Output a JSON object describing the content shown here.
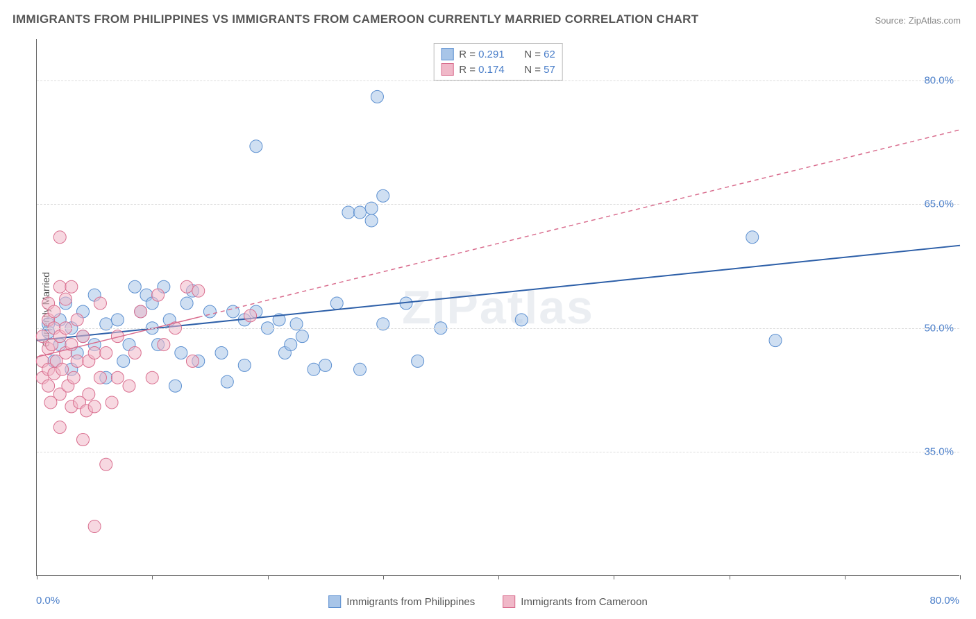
{
  "title": "IMMIGRANTS FROM PHILIPPINES VS IMMIGRANTS FROM CAMEROON CURRENTLY MARRIED CORRELATION CHART",
  "source": "Source: ZipAtlas.com",
  "ylabel": "Currently Married",
  "watermark": "ZIPatlas",
  "chart": {
    "type": "scatter",
    "xlim": [
      0,
      80
    ],
    "ylim": [
      20,
      85
    ],
    "x_min_label": "0.0%",
    "x_max_label": "80.0%",
    "y_ticks": [
      35.0,
      50.0,
      65.0,
      80.0
    ],
    "y_tick_labels": [
      "35.0%",
      "50.0%",
      "65.0%",
      "80.0%"
    ],
    "x_tick_positions": [
      0,
      10,
      20,
      30,
      40,
      50,
      60,
      70,
      80
    ],
    "grid_color": "#dddddd",
    "background_color": "#ffffff",
    "axis_color": "#666666",
    "marker_radius": 9,
    "marker_opacity": 0.55,
    "series": [
      {
        "name": "Immigrants from Philippines",
        "fill_color": "#a8c5e8",
        "stroke_color": "#5b8fd0",
        "line_color": "#2d5fa8",
        "line_dash": "none",
        "line_width": 2,
        "r_value": "0.291",
        "n_value": "62",
        "trend": {
          "x1": 0,
          "y1": 48.5,
          "x2": 80,
          "y2": 60.0
        },
        "points": [
          [
            1,
            49.5
          ],
          [
            1,
            50.5
          ],
          [
            1.5,
            46
          ],
          [
            2,
            48
          ],
          [
            2,
            51
          ],
          [
            2.5,
            53
          ],
          [
            3,
            50
          ],
          [
            3,
            45
          ],
          [
            3.5,
            47
          ],
          [
            4,
            52
          ],
          [
            4,
            49
          ],
          [
            5,
            54
          ],
          [
            5,
            48
          ],
          [
            6,
            50.5
          ],
          [
            6,
            44
          ],
          [
            7,
            51
          ],
          [
            7.5,
            46
          ],
          [
            8,
            48
          ],
          [
            8.5,
            55
          ],
          [
            9,
            52
          ],
          [
            9.5,
            54
          ],
          [
            10,
            53
          ],
          [
            10,
            50
          ],
          [
            10.5,
            48
          ],
          [
            11,
            55
          ],
          [
            11.5,
            51
          ],
          [
            12,
            43
          ],
          [
            12.5,
            47
          ],
          [
            13,
            53
          ],
          [
            13.5,
            54.5
          ],
          [
            14,
            46
          ],
          [
            15,
            52
          ],
          [
            16,
            47
          ],
          [
            16.5,
            43.5
          ],
          [
            17,
            52
          ],
          [
            18,
            51
          ],
          [
            18,
            45.5
          ],
          [
            19,
            52
          ],
          [
            19,
            72
          ],
          [
            20,
            50
          ],
          [
            21,
            51
          ],
          [
            21.5,
            47
          ],
          [
            22,
            48
          ],
          [
            22.5,
            50.5
          ],
          [
            23,
            49
          ],
          [
            24,
            45
          ],
          [
            25,
            45.5
          ],
          [
            26,
            53
          ],
          [
            27,
            64
          ],
          [
            28,
            45
          ],
          [
            29,
            63
          ],
          [
            29.5,
            78
          ],
          [
            30,
            50.5
          ],
          [
            30,
            66
          ],
          [
            32,
            53
          ],
          [
            33,
            46
          ],
          [
            35,
            50
          ],
          [
            42,
            51
          ],
          [
            62,
            61
          ],
          [
            64,
            48.5
          ],
          [
            28,
            64
          ],
          [
            29,
            64.5
          ]
        ]
      },
      {
        "name": "Immigrants from Cameroon",
        "fill_color": "#f0b8c8",
        "stroke_color": "#d96d8e",
        "line_color": "#d96d8e",
        "line_dash": "6,5",
        "line_width": 1.5,
        "r_value": "0.174",
        "n_value": "57",
        "trend": {
          "x1": 0,
          "y1": 46.5,
          "x2": 80,
          "y2": 74.0
        },
        "trend_solid_end_x": 14,
        "points": [
          [
            0.5,
            46
          ],
          [
            0.5,
            49
          ],
          [
            0.5,
            44
          ],
          [
            1,
            45
          ],
          [
            1,
            47.5
          ],
          [
            1,
            51
          ],
          [
            1,
            43
          ],
          [
            1,
            53
          ],
          [
            1.2,
            41
          ],
          [
            1.3,
            48
          ],
          [
            1.5,
            44.5
          ],
          [
            1.5,
            50
          ],
          [
            1.5,
            52
          ],
          [
            1.7,
            46
          ],
          [
            2,
            61
          ],
          [
            2,
            49
          ],
          [
            2,
            42
          ],
          [
            2,
            38
          ],
          [
            2,
            55
          ],
          [
            2.2,
            45
          ],
          [
            2.5,
            47
          ],
          [
            2.5,
            50
          ],
          [
            2.5,
            53.5
          ],
          [
            2.7,
            43
          ],
          [
            3,
            48
          ],
          [
            3,
            40.5
          ],
          [
            3,
            55
          ],
          [
            3.2,
            44
          ],
          [
            3.5,
            46
          ],
          [
            3.5,
            51
          ],
          [
            3.7,
            41
          ],
          [
            4,
            49
          ],
          [
            4,
            36.5
          ],
          [
            4.3,
            40
          ],
          [
            4.5,
            42
          ],
          [
            4.5,
            46
          ],
          [
            5,
            40.5
          ],
          [
            5,
            47
          ],
          [
            5,
            26
          ],
          [
            5.5,
            44
          ],
          [
            5.5,
            53
          ],
          [
            6,
            33.5
          ],
          [
            6,
            47
          ],
          [
            6.5,
            41
          ],
          [
            7,
            49
          ],
          [
            7,
            44
          ],
          [
            8,
            43
          ],
          [
            8.5,
            47
          ],
          [
            9,
            52
          ],
          [
            10,
            44
          ],
          [
            10.5,
            54
          ],
          [
            11,
            48
          ],
          [
            12,
            50
          ],
          [
            13,
            55
          ],
          [
            13.5,
            46
          ],
          [
            14,
            54.5
          ],
          [
            18.5,
            51.5
          ]
        ]
      }
    ]
  },
  "legend_top": {
    "r_label": "R =",
    "n_label": "N ="
  },
  "legend_bottom": {
    "label1": "Immigrants from Philippines",
    "label2": "Immigrants from Cameroon"
  }
}
